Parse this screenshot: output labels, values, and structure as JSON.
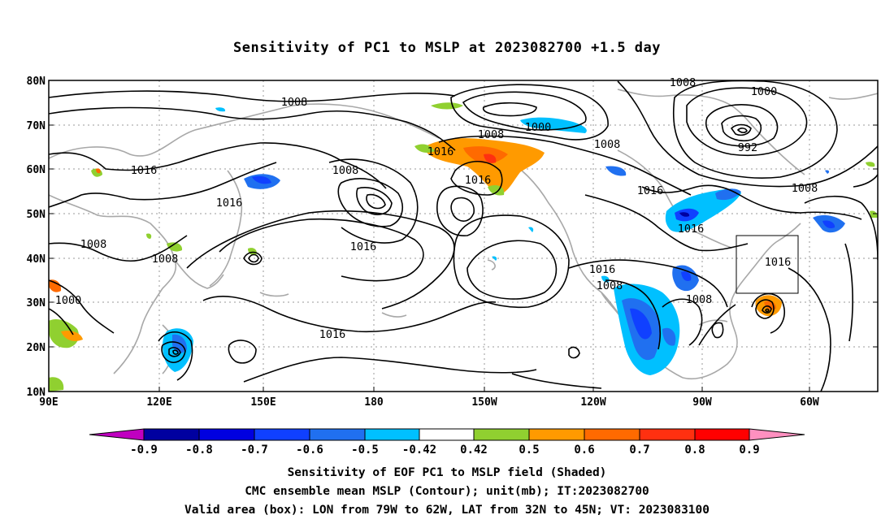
{
  "title": "Sensitivity of PC1 to MSLP at 2023082700 +1.5 day",
  "lat_labels": [
    "80N",
    "70N",
    "60N",
    "50N",
    "40N",
    "30N",
    "20N",
    "10N"
  ],
  "lon_labels": [
    "90E",
    "120E",
    "150E",
    "180",
    "150W",
    "120W",
    "90W",
    "60W"
  ],
  "contour_labels": [
    "1008",
    "1008",
    "1000",
    "992",
    "1000",
    "1008",
    "1016",
    "1008",
    "1008",
    "1016",
    "1016",
    "1016",
    "1016",
    "1016",
    "1008",
    "1008",
    "1000",
    "1016",
    "1016",
    "1008",
    "1008",
    "1016",
    "1008",
    "1016"
  ],
  "colorbar": {
    "labels": [
      "-0.9",
      "-0.8",
      "-0.7",
      "-0.6",
      "-0.5",
      "-0.42",
      "0.42",
      "0.5",
      "0.6",
      "0.7",
      "0.8",
      "0.9"
    ],
    "colors": [
      "#c000c0",
      "#0000a0",
      "#0000e0",
      "#1040ff",
      "#2070f0",
      "#00c0ff",
      "#ffffff",
      "#90d030",
      "#ff9a00",
      "#ff6a00",
      "#ff3010",
      "#ff0000",
      "#ff90c0"
    ]
  },
  "captions": [
    "Sensitivity of EOF PC1 to MSLP field (Shaded)",
    "CMC ensemble mean MSLP (Contour); unit(mb); IT:2023082700",
    "Valid area (box): LON from 79W to 62W, LAT from 32N to 45N; VT: 2023083100"
  ],
  "valid_box": {
    "lon_range": [
      "79W",
      "62W"
    ],
    "lat_range": [
      "32N",
      "45N"
    ]
  }
}
